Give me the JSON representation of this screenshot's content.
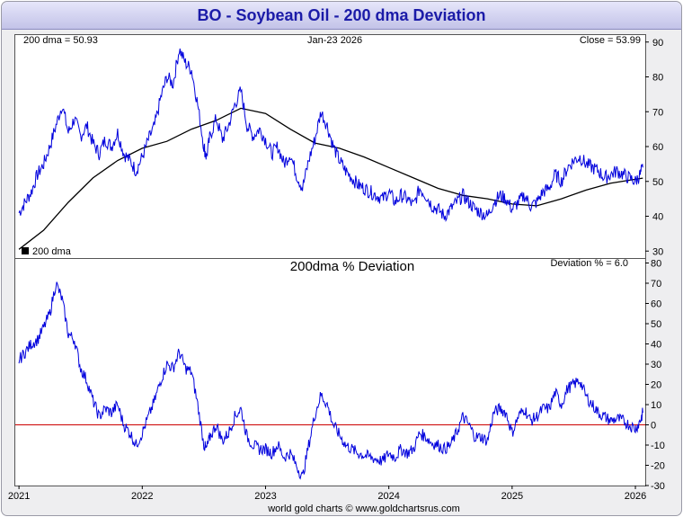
{
  "title": "BO  -  Soybean Oil - 200 dma Deviation",
  "footer": "world gold charts © www.goldchartsrus.com",
  "colors": {
    "price": "#0000dd",
    "dma": "#000000",
    "deviation": "#0000dd",
    "zero_line": "#cc0000",
    "title_text": "#1b1ba8"
  },
  "chart_data": [
    {
      "type": "line",
      "panel": "price",
      "top_left_label": "200 dma =  50.93",
      "date_label": "Jan-23  2026",
      "top_right_label": "Close = 53.99",
      "legend": [
        {
          "swatch": "#000000",
          "label": "200 dma"
        }
      ],
      "ylim": [
        28,
        92
      ],
      "yticks": [
        30,
        40,
        50,
        60,
        70,
        80,
        90
      ],
      "xlim": [
        2020.97,
        2026.08
      ],
      "xticks": [
        "2021",
        "2022",
        "2023",
        "2024",
        "2025",
        "2026"
      ],
      "series": [
        {
          "key": "price",
          "x": [
            2021.0,
            2021.05,
            2021.1,
            2021.15,
            2021.2,
            2021.25,
            2021.3,
            2021.35,
            2021.4,
            2021.45,
            2021.5,
            2021.55,
            2021.6,
            2021.65,
            2021.7,
            2021.75,
            2021.8,
            2021.85,
            2021.9,
            2021.95,
            2022.0,
            2022.05,
            2022.1,
            2022.15,
            2022.2,
            2022.25,
            2022.3,
            2022.35,
            2022.4,
            2022.45,
            2022.5,
            2022.52,
            2022.55,
            2022.6,
            2022.65,
            2022.7,
            2022.75,
            2022.8,
            2022.85,
            2022.9,
            2022.95,
            2023.0,
            2023.05,
            2023.1,
            2023.15,
            2023.2,
            2023.25,
            2023.3,
            2023.35,
            2023.4,
            2023.45,
            2023.5,
            2023.55,
            2023.6,
            2023.65,
            2023.7,
            2023.75,
            2023.8,
            2023.85,
            2023.9,
            2023.95,
            2024.0,
            2024.05,
            2024.1,
            2024.15,
            2024.2,
            2024.25,
            2024.3,
            2024.35,
            2024.4,
            2024.45,
            2024.5,
            2024.55,
            2024.6,
            2024.65,
            2024.7,
            2024.75,
            2024.8,
            2024.85,
            2024.9,
            2024.95,
            2025.0,
            2025.05,
            2025.1,
            2025.15,
            2025.2,
            2025.25,
            2025.3,
            2025.35,
            2025.4,
            2025.45,
            2025.5,
            2025.55,
            2025.6,
            2025.65,
            2025.7,
            2025.75,
            2025.8,
            2025.85,
            2025.9,
            2025.95,
            2026.0,
            2026.04,
            2026.06
          ],
          "y": [
            41,
            44,
            47,
            52,
            55,
            60,
            66,
            72,
            64,
            68,
            63,
            66,
            61,
            58,
            62,
            60,
            64,
            58,
            56,
            53,
            57,
            62,
            66,
            74,
            80,
            78,
            88,
            84,
            82,
            72,
            60,
            57,
            63,
            68,
            62,
            66,
            72,
            76,
            66,
            63,
            65,
            62,
            58,
            60,
            55,
            58,
            52,
            48,
            56,
            62,
            70,
            66,
            60,
            56,
            53,
            51,
            49,
            48,
            47,
            46,
            45,
            47,
            44,
            46,
            45,
            43,
            48,
            46,
            43,
            42,
            40,
            42,
            44,
            46,
            44,
            42,
            41,
            40,
            44,
            46,
            45,
            42,
            44,
            46,
            43,
            44,
            47,
            48,
            52,
            50,
            54,
            56,
            57,
            55,
            54,
            53,
            51,
            52,
            53,
            52,
            51,
            50,
            52,
            54
          ]
        },
        {
          "key": "dma",
          "name": "200 dma",
          "x": [
            2021.0,
            2021.2,
            2021.4,
            2021.6,
            2021.8,
            2022.0,
            2022.2,
            2022.4,
            2022.6,
            2022.8,
            2023.0,
            2023.2,
            2023.4,
            2023.6,
            2023.8,
            2024.0,
            2024.2,
            2024.4,
            2024.6,
            2024.8,
            2025.0,
            2025.2,
            2025.4,
            2025.6,
            2025.8,
            2026.0,
            2026.06
          ],
          "y": [
            30.5,
            36,
            44,
            51,
            56,
            59.5,
            61.5,
            65,
            67.5,
            71,
            69.5,
            65,
            61,
            59.5,
            57,
            54,
            51,
            48,
            46,
            45,
            43.5,
            43,
            45,
            47.5,
            49.5,
            50.6,
            50.93
          ]
        }
      ]
    },
    {
      "type": "line",
      "panel": "deviation",
      "title": "200dma  %  Deviation",
      "top_right_label": "Deviation % = 6.0",
      "ylim": [
        -30,
        82
      ],
      "yticks": [
        -30,
        -20,
        -10,
        0,
        10,
        20,
        30,
        40,
        50,
        60,
        70,
        80
      ],
      "reference_line": 0,
      "xlim": [
        2020.97,
        2026.08
      ],
      "x": [
        2021.0,
        2021.05,
        2021.1,
        2021.15,
        2021.2,
        2021.25,
        2021.3,
        2021.35,
        2021.4,
        2021.45,
        2021.5,
        2021.55,
        2021.6,
        2021.65,
        2021.7,
        2021.75,
        2021.8,
        2021.85,
        2021.9,
        2021.95,
        2022.0,
        2022.05,
        2022.1,
        2022.15,
        2022.2,
        2022.25,
        2022.3,
        2022.35,
        2022.4,
        2022.45,
        2022.5,
        2022.52,
        2022.55,
        2022.6,
        2022.65,
        2022.7,
        2022.75,
        2022.8,
        2022.85,
        2022.9,
        2022.95,
        2023.0,
        2023.05,
        2023.1,
        2023.15,
        2023.2,
        2023.25,
        2023.3,
        2023.35,
        2023.4,
        2023.45,
        2023.5,
        2023.55,
        2023.6,
        2023.65,
        2023.7,
        2023.75,
        2023.8,
        2023.85,
        2023.9,
        2023.95,
        2024.0,
        2024.05,
        2024.1,
        2024.15,
        2024.2,
        2024.25,
        2024.3,
        2024.35,
        2024.4,
        2024.45,
        2024.5,
        2024.55,
        2024.6,
        2024.65,
        2024.7,
        2024.75,
        2024.8,
        2024.85,
        2024.9,
        2024.95,
        2025.0,
        2025.05,
        2025.1,
        2025.15,
        2025.2,
        2025.25,
        2025.3,
        2025.35,
        2025.4,
        2025.45,
        2025.5,
        2025.55,
        2025.6,
        2025.65,
        2025.7,
        2025.75,
        2025.8,
        2025.85,
        2025.9,
        2025.95,
        2026.0,
        2026.04,
        2026.06
      ],
      "y": [
        32,
        36,
        40,
        42,
        48,
        55,
        70,
        62,
        45,
        42,
        28,
        22,
        12,
        4,
        8,
        6,
        10,
        0,
        -4,
        -10,
        -4,
        4,
        12,
        22,
        30,
        28,
        36,
        28,
        26,
        10,
        -10,
        -12,
        -6,
        0,
        -8,
        -4,
        4,
        8,
        -6,
        -10,
        -12,
        -12,
        -14,
        -10,
        -16,
        -14,
        -20,
        -26,
        -10,
        5,
        15,
        10,
        0,
        -5,
        -10,
        -12,
        -14,
        -15,
        -16,
        -17,
        -18,
        -14,
        -16,
        -12,
        -14,
        -12,
        -4,
        -6,
        -9,
        -10,
        -12,
        -10,
        -4,
        4,
        0,
        -6,
        -6,
        -8,
        6,
        8,
        6,
        -4,
        4,
        8,
        2,
        4,
        8,
        8,
        16,
        10,
        18,
        20,
        22,
        14,
        10,
        6,
        4,
        2,
        3,
        2,
        0,
        -2,
        2,
        6
      ]
    }
  ]
}
